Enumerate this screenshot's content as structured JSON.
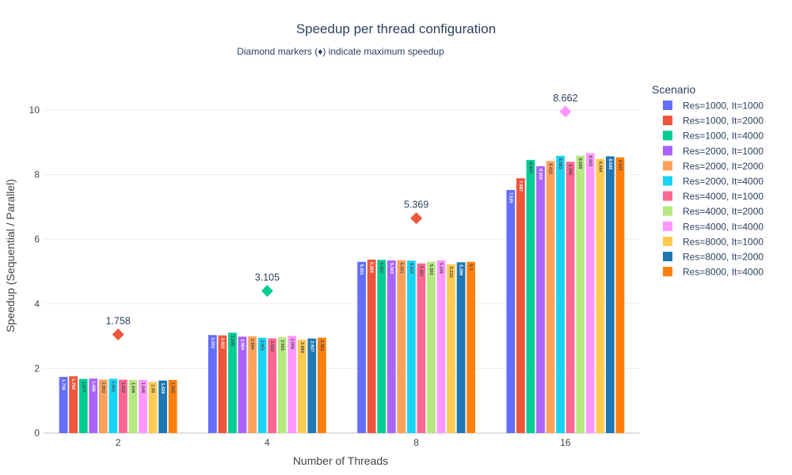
{
  "chart_data": {
    "type": "bar",
    "title": "Speedup per thread configuration",
    "subtitle": "Diamond markers (♦) indicate maximum speedup",
    "xlabel": "Number of Threads",
    "ylabel": "Speedup (Sequential / Parallel)",
    "categories": [
      "2",
      "4",
      "8",
      "16"
    ],
    "ylim": [
      0,
      11.2
    ],
    "yticks": [
      0,
      2,
      4,
      6,
      8,
      10
    ],
    "grid": true,
    "legend": {
      "title": "Scenario",
      "placement": "right"
    },
    "series": [
      {
        "name": "Res=1000, It=1000",
        "color": "#636efa",
        "values": [
          1.738,
          3.033,
          5.301,
          7.525
        ]
      },
      {
        "name": "Res=1000, It=2000",
        "color": "#EF553B",
        "values": [
          1.758,
          3.022,
          5.369,
          7.887
        ]
      },
      {
        "name": "Res=1000, It=4000",
        "color": "#00cc96",
        "values": [
          1.677,
          3.105,
          5.361,
          8.457
        ]
      },
      {
        "name": "Res=2000, It=1000",
        "color": "#ab63fa",
        "values": [
          1.686,
          2.984,
          5.343,
          8.259
        ]
      },
      {
        "name": "Res=2000, It=2000",
        "color": "#FFA15A",
        "values": [
          1.653,
          2.994,
          5.351,
          8.422
        ]
      },
      {
        "name": "Res=2000, It=4000",
        "color": "#19d3f3",
        "values": [
          1.681,
          2.951,
          5.337,
          8.583
        ]
      },
      {
        "name": "Res=4000, It=1000",
        "color": "#FF6692",
        "values": [
          1.652,
          2.932,
          5.251,
          8.398
        ]
      },
      {
        "name": "Res=4000, It=2000",
        "color": "#B6E880",
        "values": [
          1.646,
          2.963,
          5.302,
          8.588
        ]
      },
      {
        "name": "Res=4000, It=4000",
        "color": "#FF97FF",
        "values": [
          1.646,
          3.006,
          5.345,
          8.662
        ]
      },
      {
        "name": "Res=8000, It=1000",
        "color": "#FECB52",
        "values": [
          1.58,
          2.889,
          5.226,
          8.486
        ]
      },
      {
        "name": "Res=8000, It=2000",
        "color": "#1f77b4",
        "values": [
          1.626,
          2.927,
          5.286,
          8.566
        ]
      },
      {
        "name": "Res=8000, It=4000",
        "color": "#ff7f0e",
        "values": [
          1.645,
          2.953,
          5.3,
          8.535
        ]
      }
    ],
    "bar_labels": [
      [
        "1.738",
        "3.033",
        "5.301",
        "7.525"
      ],
      [
        "1.758",
        "3.022",
        "5.369",
        "7.887"
      ],
      [
        "1.677",
        "3.105",
        "5.361",
        "8.457"
      ],
      [
        "1.686",
        "2.984",
        "5.343",
        "8.259"
      ],
      [
        "1.653",
        "2.994",
        "5.351",
        "8.422"
      ],
      [
        "1.681",
        "2.951",
        "5.337",
        "8.583"
      ],
      [
        "1.652",
        "2.932",
        "5.251",
        "8.398"
      ],
      [
        "1.646",
        "2.963",
        "5.302",
        "8.588"
      ],
      [
        "1.646",
        "3.006",
        "5.345",
        "8.662"
      ],
      [
        "1.58",
        "2.889",
        "5.226",
        "8.486"
      ],
      [
        "1.626",
        "2.927",
        "5.286",
        "8.566"
      ],
      [
        "1.645",
        "2.953",
        "5.3",
        "8.535"
      ]
    ],
    "max_markers": [
      {
        "category": "2",
        "value": 1.758,
        "label": "1.758",
        "marker_y": 3.05,
        "color": "#EF553B"
      },
      {
        "category": "4",
        "value": 3.105,
        "label": "3.105",
        "marker_y": 4.4,
        "color": "#00cc96"
      },
      {
        "category": "8",
        "value": 5.369,
        "label": "5.369",
        "marker_y": 6.65,
        "color": "#EF553B"
      },
      {
        "category": "16",
        "value": 8.662,
        "label": "8.662",
        "marker_y": 9.95,
        "color": "#FF97FF"
      }
    ]
  }
}
